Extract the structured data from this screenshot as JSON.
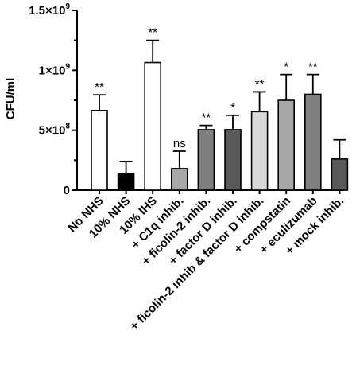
{
  "chart_data": {
    "type": "bar",
    "ylabel": "CFU/ml",
    "xlabel": "",
    "title": "",
    "ylim": [
      0,
      1500000000
    ],
    "yticks": [
      {
        "value": 0,
        "mantissa": "0",
        "exponent": ""
      },
      {
        "value": 500000000,
        "mantissa": "5×10",
        "exponent": "8"
      },
      {
        "value": 1000000000,
        "mantissa": "1×10",
        "exponent": "9"
      },
      {
        "value": 1500000000,
        "mantissa": "1.5×10",
        "exponent": "9"
      }
    ],
    "categories": [
      "No NHS",
      "10% NHS",
      "10% IHS",
      "+ C1q inhib.",
      "+ ficolin-2 inhib.",
      "+ factor D inhib.",
      "+ ficolin-2 inhib & factor D inhib.",
      "+ compstatin",
      "+ eculizumab",
      "+ mock inhib."
    ],
    "values": [
      665000000,
      140000000,
      1065000000,
      180000000,
      505000000,
      505000000,
      655000000,
      750000000,
      800000000,
      260000000
    ],
    "errors": [
      130000000,
      100000000,
      185000000,
      145000000,
      35000000,
      120000000,
      165000000,
      215000000,
      165000000,
      160000000
    ],
    "significance": [
      "**",
      "",
      "**",
      "ns",
      "**",
      "*",
      "**",
      "*",
      "**",
      ""
    ],
    "colors": [
      "#ffffff",
      "#000000",
      "#ffffff",
      "#a6a6a6",
      "#7f7f7f",
      "#595959",
      "#d9d9d9",
      "#a6a6a6",
      "#7f7f7f",
      "#595959"
    ],
    "grid": false,
    "legend": "none"
  }
}
